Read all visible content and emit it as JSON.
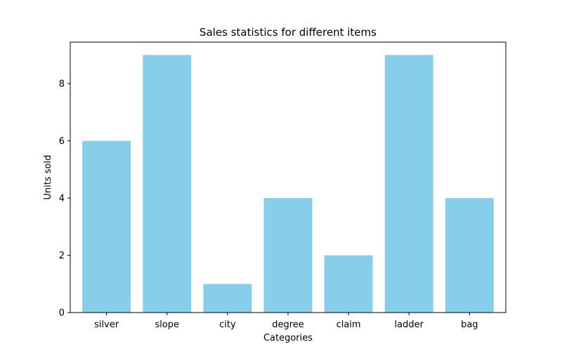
{
  "chart_data": {
    "type": "bar",
    "title": "Sales statistics for different items",
    "xlabel": "Categories",
    "ylabel": "Units sold",
    "categories": [
      "silver",
      "slope",
      "city",
      "degree",
      "claim",
      "ladder",
      "bag"
    ],
    "values": [
      6,
      9,
      1,
      4,
      2,
      9,
      4
    ],
    "ylim": [
      0,
      9.45
    ],
    "yticks": [
      0,
      2,
      4,
      6,
      8
    ],
    "grid": false,
    "bar_color": "#87ceeb"
  }
}
